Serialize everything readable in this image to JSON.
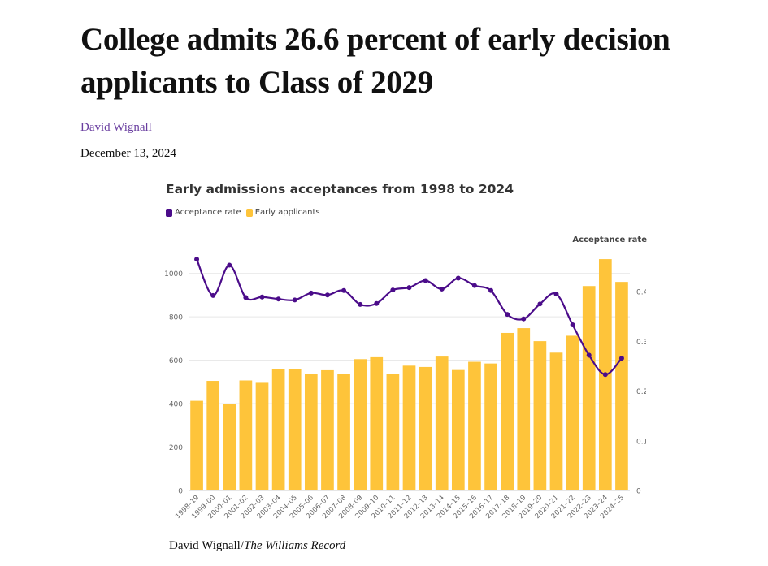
{
  "article": {
    "headline": "College admits 26.6 percent of early decision applicants to Class of 2029",
    "author": "David Wignall",
    "date": "December 13, 2024"
  },
  "caption": {
    "credit": "David Wignall/",
    "publication": "The Williams Record"
  },
  "colors": {
    "bar": "#fec43a",
    "line": "#4b0c8a",
    "grid": "#e6e6e6",
    "axis_text": "#666666"
  },
  "chart_data": {
    "type": "bar",
    "title": "Early admissions acceptances from 1998 to 2024",
    "legend": [
      "Acceptance rate",
      "Early applicants"
    ],
    "legend_placement": "top-left",
    "right_axis_title": "Acceptance rate",
    "categories": [
      "1998–19",
      "1999–00",
      "2000–01",
      "2001–02",
      "2002–03",
      "2003–04",
      "2004–05",
      "2005–06",
      "2006–07",
      "2007–08",
      "2008–09",
      "2009–10",
      "2010–11",
      "2011–12",
      "2012–13",
      "2013–14",
      "2014–15",
      "2015–16",
      "2016–17",
      "2017–18",
      "2018–19",
      "2019–20",
      "2020–21",
      "2021–22",
      "2022–23",
      "2023–24",
      "2024–25"
    ],
    "series": [
      {
        "name": "Early applicants",
        "type": "bar",
        "axis": "left",
        "values": [
          413,
          505,
          400,
          507,
          496,
          559,
          559,
          535,
          554,
          537,
          605,
          614,
          538,
          575,
          569,
          617,
          555,
          593,
          585,
          726,
          748,
          688,
          635,
          713,
          942,
          1066,
          961
        ]
      },
      {
        "name": "Acceptance rate",
        "type": "line",
        "axis": "right",
        "values": [
          0.465,
          0.392,
          0.453,
          0.388,
          0.389,
          0.385,
          0.383,
          0.397,
          0.393,
          0.402,
          0.374,
          0.376,
          0.403,
          0.408,
          0.422,
          0.405,
          0.427,
          0.412,
          0.402,
          0.354,
          0.345,
          0.375,
          0.395,
          0.333,
          0.272,
          0.233,
          0.266
        ]
      }
    ],
    "left_axis": {
      "ylim": [
        0,
        1100
      ],
      "ticks": [
        "0",
        "200",
        "400",
        "600",
        "800",
        "1000"
      ]
    },
    "right_axis": {
      "ylim": [
        0,
        0.48
      ],
      "ticks": [
        "0",
        "0.1",
        "0.2",
        "0.3",
        "0.4"
      ]
    },
    "grid": true
  }
}
